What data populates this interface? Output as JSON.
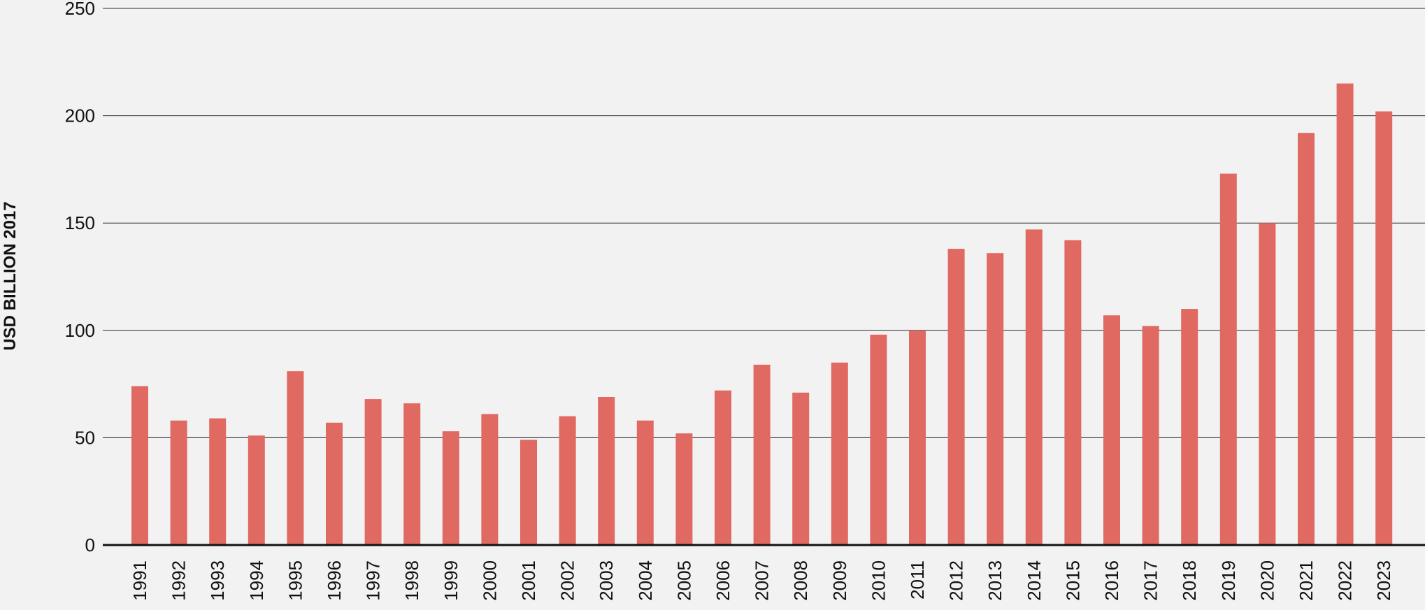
{
  "chart_data": {
    "type": "bar",
    "ylabel": "USD BILLION 2017",
    "xlabel": "",
    "ylim": [
      0,
      250
    ],
    "yticks": [
      0,
      50,
      100,
      150,
      200,
      250
    ],
    "grid": true,
    "bar_color": "#e06961",
    "categories": [
      "1991",
      "1992",
      "1993",
      "1994",
      "1995",
      "1996",
      "1997",
      "1998",
      "1999",
      "2000",
      "2001",
      "2002",
      "2003",
      "2004",
      "2005",
      "2006",
      "2007",
      "2008",
      "2009",
      "2010",
      "2011",
      "2012",
      "2013",
      "2014",
      "2015",
      "2016",
      "2017",
      "2018",
      "2019",
      "2020",
      "2021",
      "2022",
      "2023"
    ],
    "values": [
      74,
      58,
      59,
      51,
      81,
      57,
      68,
      66,
      53,
      61,
      49,
      60,
      69,
      58,
      52,
      72,
      84,
      71,
      85,
      98,
      100,
      138,
      136,
      147,
      142,
      107,
      102,
      110,
      173,
      150,
      192,
      215,
      202
    ]
  }
}
